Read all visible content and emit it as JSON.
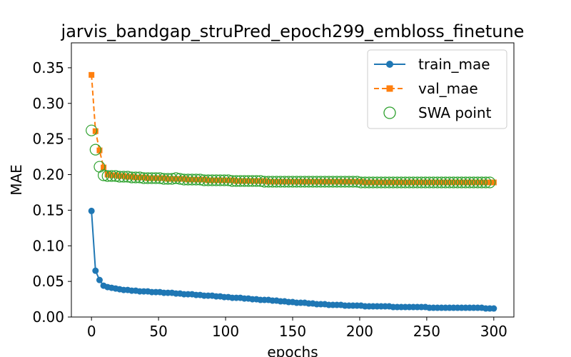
{
  "chart_data": {
    "type": "line",
    "title": "jarvis_bandgap_struPred_epoch299_embloss_finetune",
    "xlabel": "epochs",
    "ylabel": "MAE",
    "xlim": [
      -15,
      315
    ],
    "ylim": [
      0.0,
      0.385
    ],
    "x_ticks": [
      0,
      50,
      100,
      150,
      200,
      250,
      300
    ],
    "y_ticks": [
      0.0,
      0.05,
      0.1,
      0.15,
      0.2,
      0.25,
      0.3,
      0.35
    ],
    "x_tick_labels": [
      "0",
      "50",
      "100",
      "150",
      "200",
      "250",
      "300"
    ],
    "y_tick_labels": [
      "0.00",
      "0.05",
      "0.10",
      "0.15",
      "0.20",
      "0.25",
      "0.30",
      "0.35"
    ],
    "grid": false,
    "legend_position": "top-right",
    "x_step": 3,
    "series": [
      {
        "name": "train_mae",
        "color": "#1f77b4",
        "marker": "circle",
        "line_style": "solid",
        "x_start": 0,
        "values": [
          0.149,
          0.065,
          0.052,
          0.044,
          0.042,
          0.041,
          0.04,
          0.039,
          0.038,
          0.038,
          0.037,
          0.037,
          0.036,
          0.036,
          0.036,
          0.035,
          0.035,
          0.035,
          0.034,
          0.034,
          0.034,
          0.033,
          0.033,
          0.032,
          0.032,
          0.032,
          0.031,
          0.031,
          0.03,
          0.03,
          0.03,
          0.029,
          0.029,
          0.028,
          0.028,
          0.027,
          0.027,
          0.027,
          0.026,
          0.026,
          0.025,
          0.025,
          0.024,
          0.024,
          0.024,
          0.023,
          0.023,
          0.022,
          0.022,
          0.021,
          0.021,
          0.02,
          0.02,
          0.02,
          0.019,
          0.019,
          0.018,
          0.018,
          0.018,
          0.017,
          0.017,
          0.017,
          0.017,
          0.016,
          0.016,
          0.016,
          0.016,
          0.016,
          0.015,
          0.015,
          0.015,
          0.015,
          0.015,
          0.015,
          0.015,
          0.014,
          0.014,
          0.014,
          0.014,
          0.014,
          0.014,
          0.014,
          0.014,
          0.014,
          0.013,
          0.013,
          0.013,
          0.013,
          0.013,
          0.013,
          0.013,
          0.013,
          0.013,
          0.013,
          0.013,
          0.013,
          0.013,
          0.013,
          0.012,
          0.012,
          0.012
        ]
      },
      {
        "name": "val_mae",
        "color": "#ff7f0e",
        "marker": "square",
        "line_style": "dashed",
        "x_start": 0,
        "values": [
          0.34,
          0.261,
          0.234,
          0.21,
          0.2,
          0.199,
          0.199,
          0.198,
          0.198,
          0.197,
          0.197,
          0.196,
          0.196,
          0.196,
          0.195,
          0.195,
          0.195,
          0.195,
          0.195,
          0.194,
          0.194,
          0.194,
          0.194,
          0.194,
          0.193,
          0.193,
          0.193,
          0.193,
          0.193,
          0.192,
          0.192,
          0.192,
          0.192,
          0.192,
          0.192,
          0.192,
          0.191,
          0.191,
          0.191,
          0.191,
          0.191,
          0.191,
          0.191,
          0.191,
          0.19,
          0.19,
          0.19,
          0.19,
          0.19,
          0.19,
          0.19,
          0.19,
          0.19,
          0.19,
          0.19,
          0.19,
          0.19,
          0.19,
          0.19,
          0.19,
          0.19,
          0.19,
          0.19,
          0.19,
          0.19,
          0.19,
          0.19,
          0.19,
          0.189,
          0.189,
          0.189,
          0.189,
          0.189,
          0.189,
          0.189,
          0.189,
          0.189,
          0.189,
          0.189,
          0.189,
          0.189,
          0.189,
          0.189,
          0.189,
          0.189,
          0.189,
          0.189,
          0.189,
          0.189,
          0.189,
          0.189,
          0.189,
          0.189,
          0.189,
          0.189,
          0.189,
          0.189,
          0.189,
          0.189,
          0.189,
          0.189
        ]
      },
      {
        "name": "SWA point",
        "color": "#2ca02c",
        "marker": "open-circle",
        "line_style": "none",
        "x_start": 0,
        "values": [
          0.262,
          0.235,
          0.211,
          0.199,
          0.198,
          0.198,
          0.198,
          0.197,
          0.197,
          0.197,
          0.196,
          0.196,
          0.196,
          0.195,
          0.195,
          0.195,
          0.195,
          0.195,
          0.194,
          0.194,
          0.194,
          0.195,
          0.194,
          0.193,
          0.193,
          0.193,
          0.193,
          0.193,
          0.192,
          0.192,
          0.192,
          0.192,
          0.192,
          0.192,
          0.192,
          0.191,
          0.191,
          0.191,
          0.191,
          0.191,
          0.191,
          0.191,
          0.191,
          0.19,
          0.19,
          0.19,
          0.19,
          0.19,
          0.19,
          0.19,
          0.19,
          0.19,
          0.19,
          0.19,
          0.19,
          0.19,
          0.19,
          0.19,
          0.19,
          0.19,
          0.19,
          0.19,
          0.19,
          0.19,
          0.19,
          0.19,
          0.19,
          0.189,
          0.189,
          0.189,
          0.189,
          0.189,
          0.189,
          0.189,
          0.189,
          0.189,
          0.189,
          0.189,
          0.189,
          0.189,
          0.189,
          0.189,
          0.189,
          0.189,
          0.189,
          0.189,
          0.189,
          0.189,
          0.189,
          0.189,
          0.189,
          0.189,
          0.189,
          0.189,
          0.189,
          0.189,
          0.189,
          0.189,
          0.189,
          0.189
        ]
      }
    ]
  }
}
